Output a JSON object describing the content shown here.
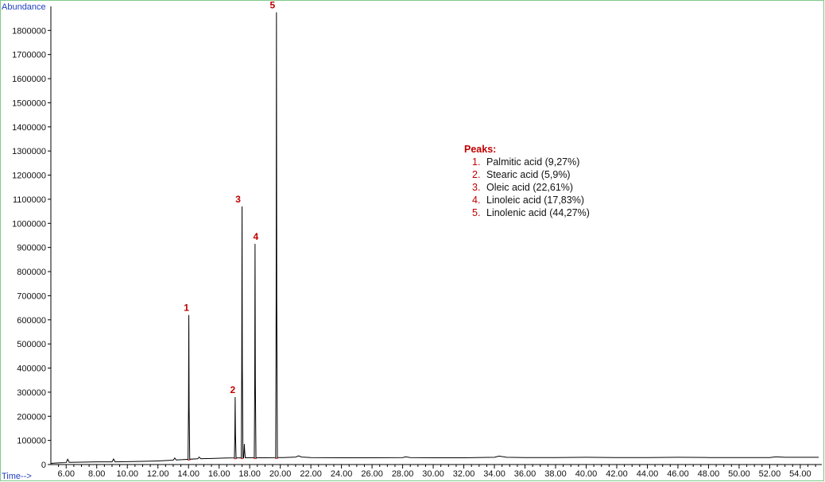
{
  "chart_data": {
    "type": "line",
    "xlabel": "Time-->",
    "ylabel": "Abundance",
    "xlim": [
      5,
      55.2
    ],
    "ylim": [
      0,
      1880000
    ],
    "xticks": [
      "6.00",
      "8.00",
      "10.00",
      "12.00",
      "14.00",
      "16.00",
      "18.00",
      "20.00",
      "22.00",
      "24.00",
      "26.00",
      "28.00",
      "30.00",
      "32.00",
      "34.00",
      "36.00",
      "38.00",
      "40.00",
      "42.00",
      "44.00",
      "46.00",
      "48.00",
      "50.00",
      "52.00",
      "54.00"
    ],
    "yticks": [
      "0",
      "100000",
      "200000",
      "300000",
      "400000",
      "500000",
      "600000",
      "700000",
      "800000",
      "900000",
      "1000000",
      "1100000",
      "1200000",
      "1300000",
      "1400000",
      "1500000",
      "1600000",
      "1700000",
      "1800000"
    ],
    "grid": false,
    "baseline": [
      [
        5.0,
        5000
      ],
      [
        5.5,
        7000
      ],
      [
        6.0,
        8000
      ],
      [
        6.1,
        22000
      ],
      [
        6.2,
        9000
      ],
      [
        7.0,
        10000
      ],
      [
        8.0,
        11000
      ],
      [
        9.0,
        11000
      ],
      [
        9.1,
        23000
      ],
      [
        9.2,
        11000
      ],
      [
        10.0,
        12000
      ],
      [
        11.0,
        13000
      ],
      [
        12.0,
        15000
      ],
      [
        13.0,
        18000
      ],
      [
        13.1,
        27000
      ],
      [
        13.2,
        19000
      ],
      [
        13.8,
        21000
      ],
      [
        14.6,
        24000
      ],
      [
        14.7,
        31000
      ],
      [
        14.8,
        24000
      ],
      [
        15.5,
        25000
      ],
      [
        16.5,
        27000
      ],
      [
        17.8,
        28000
      ],
      [
        19.0,
        28000
      ],
      [
        20.2,
        29000
      ],
      [
        21.0,
        31000
      ],
      [
        21.2,
        36000
      ],
      [
        21.4,
        31000
      ],
      [
        22.0,
        29000
      ],
      [
        24.0,
        28000
      ],
      [
        26.0,
        28000
      ],
      [
        28.0,
        29000
      ],
      [
        28.2,
        32000
      ],
      [
        28.5,
        29000
      ],
      [
        30.0,
        28000
      ],
      [
        32.0,
        28000
      ],
      [
        34.0,
        30000
      ],
      [
        34.3,
        35000
      ],
      [
        34.8,
        30000
      ],
      [
        36.0,
        29000
      ],
      [
        38.0,
        29000
      ],
      [
        40.0,
        30000
      ],
      [
        42.0,
        29000
      ],
      [
        44.0,
        29000
      ],
      [
        46.0,
        30000
      ],
      [
        48.0,
        29000
      ],
      [
        50.0,
        29000
      ],
      [
        52.0,
        29000
      ],
      [
        52.4,
        32000
      ],
      [
        53.0,
        30000
      ],
      [
        55.2,
        30000
      ]
    ],
    "series": [
      {
        "peak": "1",
        "rt": 14.02,
        "height": 620000
      },
      {
        "peak": "2",
        "rt": 17.05,
        "height": 280000
      },
      {
        "peak": "3",
        "rt": 17.5,
        "height": 1070000
      },
      {
        "peak": "4",
        "rt": 18.35,
        "height": 915000
      },
      {
        "peak": "5",
        "rt": 19.75,
        "height": 1875000
      }
    ],
    "minor_peaks": [
      {
        "rt": 17.65,
        "height": 85000
      }
    ],
    "annotations": {
      "title": "Peaks:",
      "items": [
        {
          "num": "1.",
          "text": "Palmitic acid (9,27%)"
        },
        {
          "num": "2.",
          "text": "Stearic acid (5,9%)"
        },
        {
          "num": "3.",
          "text": "Oleic acid (22,61%)"
        },
        {
          "num": "4.",
          "text": "Linoleic acid (17,83%)"
        },
        {
          "num": "5.",
          "text": "Linolenic acid (44,27%)"
        }
      ],
      "placement": "center-right"
    },
    "colors": {
      "trace": "#000000",
      "integration": "#e0302c",
      "frame": "#7ec98a",
      "axis_title": "#1f3fbf",
      "peak_label": "#c00000"
    }
  }
}
